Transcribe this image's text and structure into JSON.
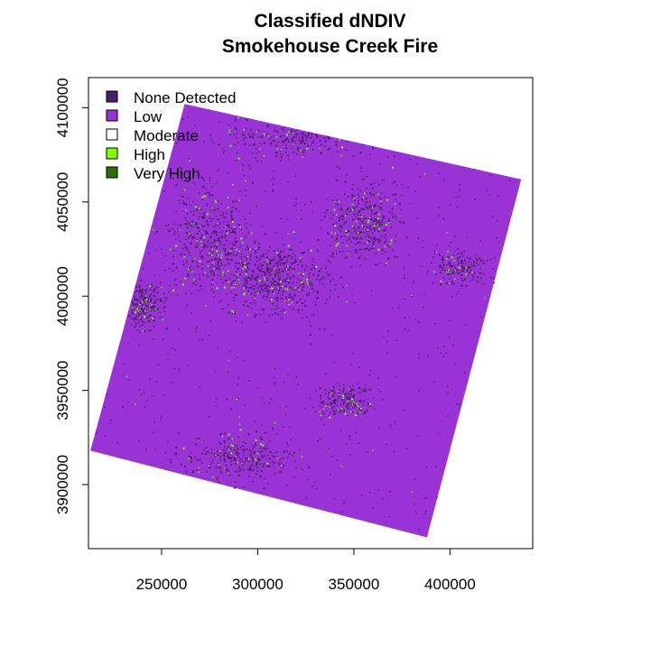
{
  "title": {
    "line1": "Classified dNDIV",
    "line2": "Smokehouse Creek Fire"
  },
  "chart_data": {
    "type": "raster-map",
    "title": "Classified dNDIV Smokehouse Creek Fire",
    "x_ticks": [
      "250000",
      "300000",
      "350000",
      "400000"
    ],
    "x_tick_values": [
      250000,
      300000,
      350000,
      400000
    ],
    "y_ticks": [
      "3900000",
      "3950000",
      "4000000",
      "4050000",
      "4100000"
    ],
    "y_tick_values": [
      3900000,
      3950000,
      4000000,
      4050000,
      4100000
    ],
    "xlim": [
      212000,
      443000
    ],
    "ylim": [
      3866000,
      4116000
    ],
    "raster_corners": [
      [
        262000,
        4102000
      ],
      [
        437000,
        4062000
      ],
      [
        388000,
        3872000
      ],
      [
        213000,
        3918000
      ]
    ],
    "legend": {
      "position": "top-left",
      "entries": [
        {
          "label": "None Detected",
          "color": "#4b1d6b"
        },
        {
          "label": "Low",
          "color": "#9933d6"
        },
        {
          "label": "Moderate",
          "color": "#ffffff"
        },
        {
          "label": "High",
          "color": "#7fff00"
        },
        {
          "label": "Very High",
          "color": "#2d6e0c"
        }
      ]
    },
    "colors": {
      "background_class": "#9933d6",
      "none_detected": "#4b1d6b",
      "high": "#7fff00",
      "very_high": "#2d6e0c"
    },
    "cluster_regions": [
      {
        "center": [
          275000,
          4030000
        ],
        "spread": [
          22000,
          30000
        ],
        "density": 0.9
      },
      {
        "center": [
          310000,
          4010000
        ],
        "spread": [
          25000,
          18000
        ],
        "density": 1.0
      },
      {
        "center": [
          355000,
          4040000
        ],
        "spread": [
          18000,
          20000
        ],
        "density": 0.7
      },
      {
        "center": [
          320000,
          4085000
        ],
        "spread": [
          35000,
          12000
        ],
        "density": 0.5
      },
      {
        "center": [
          290000,
          3915000
        ],
        "spread": [
          30000,
          12000
        ],
        "density": 0.55
      },
      {
        "center": [
          345000,
          3945000
        ],
        "spread": [
          15000,
          8000
        ],
        "density": 0.35
      },
      {
        "center": [
          405000,
          4015000
        ],
        "spread": [
          15000,
          10000
        ],
        "density": 0.3
      },
      {
        "center": [
          240000,
          3995000
        ],
        "spread": [
          10000,
          12000
        ],
        "density": 0.45
      }
    ]
  }
}
